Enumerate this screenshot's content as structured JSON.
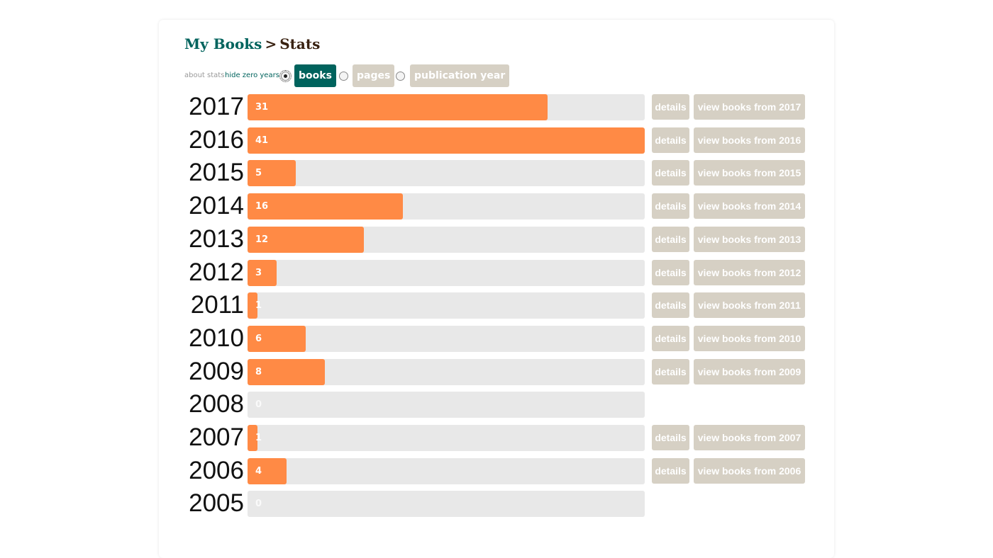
{
  "breadcrumb": {
    "root": "My Books",
    "separator": ">",
    "current": "Stats"
  },
  "controls": {
    "about_link": "about stats",
    "hide_zero_link": "hide zero years",
    "toggles": [
      {
        "label": "books",
        "selected": true
      },
      {
        "label": "pages",
        "selected": false
      },
      {
        "label": "publication year",
        "selected": false
      }
    ]
  },
  "colors": {
    "bar": "#ff8a45",
    "track": "#e8e8e8",
    "accent": "#00635d",
    "button": "#d6d0c4"
  },
  "chart_data": {
    "type": "bar",
    "orientation": "horizontal",
    "max": 41,
    "rows": [
      {
        "year": "2017",
        "count": 31,
        "details": "details",
        "view": "view books from 2017"
      },
      {
        "year": "2016",
        "count": 41,
        "details": "details",
        "view": "view books from 2016"
      },
      {
        "year": "2015",
        "count": 5,
        "details": "details",
        "view": "view books from 2015"
      },
      {
        "year": "2014",
        "count": 16,
        "details": "details",
        "view": "view books from 2014"
      },
      {
        "year": "2013",
        "count": 12,
        "details": "details",
        "view": "view books from 2013"
      },
      {
        "year": "2012",
        "count": 3,
        "details": "details",
        "view": "view books from 2012"
      },
      {
        "year": "2011",
        "count": 1,
        "details": "details",
        "view": "view books from 2011"
      },
      {
        "year": "2010",
        "count": 6,
        "details": "details",
        "view": "view books from 2010"
      },
      {
        "year": "2009",
        "count": 8,
        "details": "details",
        "view": "view books from 2009"
      },
      {
        "year": "2008",
        "count": 0
      },
      {
        "year": "2007",
        "count": 1,
        "details": "details",
        "view": "view books from 2007"
      },
      {
        "year": "2006",
        "count": 4,
        "details": "details",
        "view": "view books from 2006"
      },
      {
        "year": "2005",
        "count": 0
      }
    ]
  }
}
